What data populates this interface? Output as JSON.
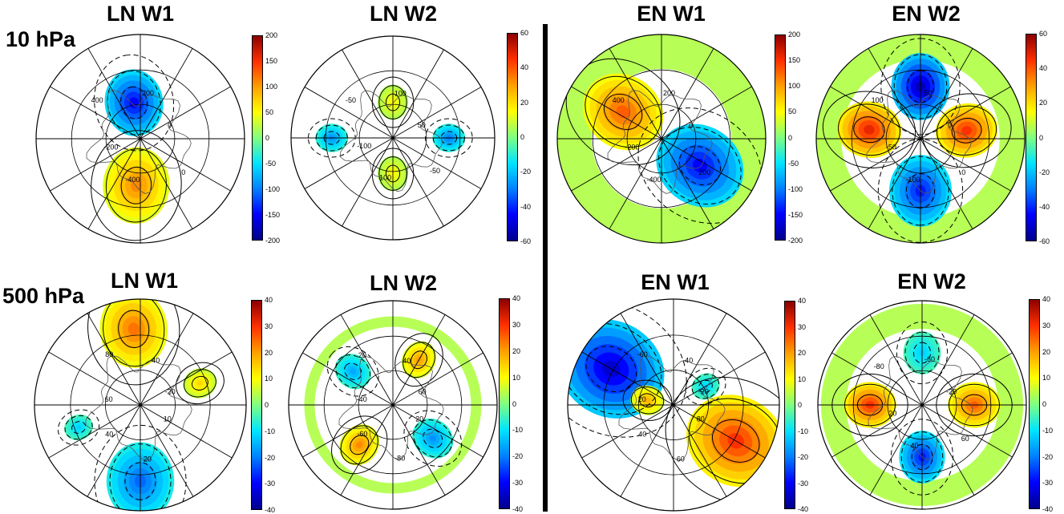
{
  "row_labels": [
    "10 hPa",
    "500 hPa"
  ],
  "chart_data": [
    {
      "type": "heatmap",
      "projection": "north-polar-stereographic",
      "title": "LN W1",
      "level": "10 hPa",
      "colorbar_ticks": [
        "200",
        "150",
        "100",
        "50",
        "0",
        "-50",
        "-100",
        "-150",
        "-200"
      ],
      "clim": [
        -200,
        200
      ],
      "contour_labels": [
        "0",
        "200",
        "400",
        "-200",
        "-400",
        "0"
      ],
      "pattern": "wave-1: negative centre towards 0°/Europe side, positive centre opposite"
    },
    {
      "type": "heatmap",
      "projection": "north-polar-stereographic",
      "title": "LN W2",
      "level": "10 hPa",
      "colorbar_ticks": [
        "60",
        "40",
        "20",
        "0",
        "-20",
        "-40",
        "-60"
      ],
      "clim": [
        -60,
        60
      ],
      "contour_labels": [
        "50",
        "100",
        "-50",
        "-100",
        "100",
        "-50"
      ],
      "pattern": "wave-2: weak positive lobes, negative lobes east and west"
    },
    {
      "type": "heatmap",
      "projection": "north-polar-stereographic",
      "title": "EN W1",
      "level": "10 hPa",
      "colorbar_ticks": [
        "200",
        "150",
        "100",
        "50",
        "0",
        "-50",
        "-100",
        "-150",
        "-200"
      ],
      "clim": [
        -200,
        200
      ],
      "contour_labels": [
        "0",
        "200",
        "400",
        "-200",
        "-400",
        "200"
      ],
      "pattern": "wave-1: positive centre upper-left, negative centre lower-right"
    },
    {
      "type": "heatmap",
      "projection": "north-polar-stereographic",
      "title": "EN W2",
      "level": "10 hPa",
      "colorbar_ticks": [
        "40",
        "20",
        "0",
        "-20",
        "-40",
        "-60"
      ],
      "colorbar_top": "60",
      "clim": [
        -60,
        60
      ],
      "contour_labels": [
        "0",
        "50",
        "100",
        "-50",
        "-100",
        "0"
      ],
      "pattern": "wave-2: positive lobes left and right, negative lobes top and bottom"
    },
    {
      "type": "heatmap",
      "projection": "north-polar-stereographic",
      "title": "LN W1",
      "level": "500 hPa",
      "colorbar_ticks": [
        "40",
        "30",
        "20",
        "10",
        "0",
        "-10",
        "-20",
        "-30",
        "-40"
      ],
      "clim": [
        -40,
        40
      ],
      "contour_labels": [
        "-20",
        "-40",
        "80",
        "60",
        "40",
        "20",
        "10"
      ],
      "pattern": "wave-1: positive ring segment north, negative segment south"
    },
    {
      "type": "heatmap",
      "projection": "north-polar-stereographic",
      "title": "LN W2",
      "level": "500 hPa",
      "colorbar_ticks": [
        "40",
        "30",
        "20",
        "10",
        "0",
        "-10",
        "-20",
        "-30",
        "-40"
      ],
      "clim": [
        -40,
        40
      ],
      "contour_labels": [
        "60",
        "40",
        "20",
        "-40",
        "-60",
        "-80",
        "20"
      ],
      "pattern": "wave-2: alternating lobes"
    },
    {
      "type": "heatmap",
      "projection": "north-polar-stereographic",
      "title": "EN W1",
      "level": "500 hPa",
      "colorbar_ticks": [
        "40",
        "30",
        "20",
        "10",
        "0",
        "-10",
        "-20",
        "-30",
        "-40"
      ],
      "clim": [
        -40,
        40
      ],
      "contour_labels": [
        "-20",
        "-40",
        "-60",
        "20",
        "40",
        "60",
        "80"
      ],
      "pattern": "wave-1: negative ring west, positive ring east"
    },
    {
      "type": "heatmap",
      "projection": "north-polar-stereographic",
      "title": "EN W2",
      "level": "500 hPa",
      "colorbar_ticks": [
        "40",
        "30",
        "20",
        "10",
        "0",
        "-10",
        "-20",
        "-30",
        "-40"
      ],
      "clim": [
        -40,
        40
      ],
      "contour_labels": [
        "-20",
        "-60",
        "-80",
        "20",
        "40",
        "60"
      ],
      "pattern": "wave-2: positive lobes left and right, negative lobes top and bottom"
    }
  ],
  "colors": {
    "map_line": "#000000",
    "coast": "#555555",
    "scale": [
      "#00008b",
      "#0000ff",
      "#0080ff",
      "#00e5ff",
      "#80ff80",
      "#ffff00",
      "#ffa000",
      "#ff3000",
      "#8b0000"
    ]
  }
}
